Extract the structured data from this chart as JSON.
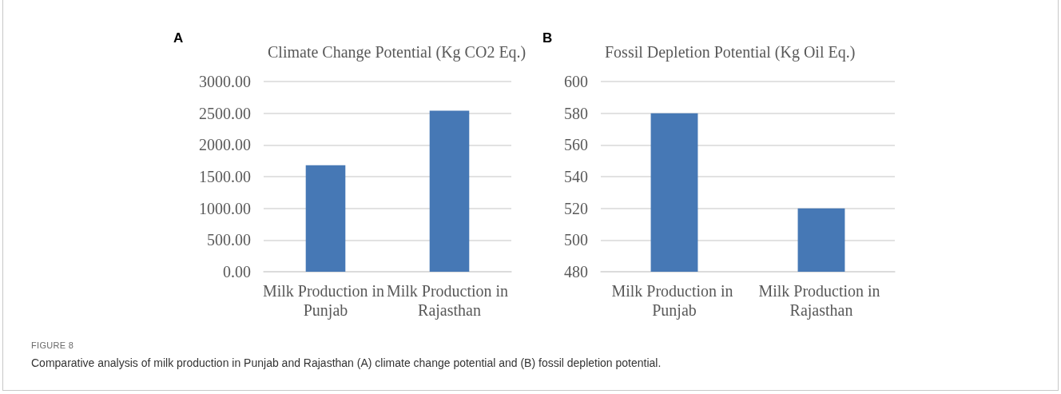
{
  "chart_data": [
    {
      "type": "bar",
      "title": "Climate Change Potential (Kg CO2 Eq.)",
      "categories": [
        "Milk Production in Punjab",
        "Milk Production in Rajasthan"
      ],
      "values": [
        1680,
        2540
      ],
      "color": "#4678b5",
      "ylim": [
        0,
        3000
      ],
      "yticks": [
        {
          "value": 0,
          "label": "0.00"
        },
        {
          "value": 500,
          "label": "500.00"
        },
        {
          "value": 1000,
          "label": "1000.00"
        },
        {
          "value": 1500,
          "label": "1500.00"
        },
        {
          "value": 2000,
          "label": "2000.00"
        },
        {
          "value": 2500,
          "label": "2500.00"
        },
        {
          "value": 3000,
          "label": "3000.00"
        }
      ],
      "grid": "y",
      "annotations": [
        "A"
      ]
    },
    {
      "type": "bar",
      "title": "Fossil Depletion Potential (Kg Oil Eq.)",
      "categories": [
        "Milk Production in Punjab",
        "Milk Production in Rajasthan"
      ],
      "values": [
        580,
        520
      ],
      "color": "#4678b5",
      "ylim": [
        480,
        600
      ],
      "yticks": [
        480,
        500,
        520,
        540,
        560,
        580,
        600
      ],
      "grid": "y",
      "annotations": [
        "B",
        "FIGURE 8",
        "Comparative analysis of milk production in Punjab and Rajasthan (A) climate change potential and (B) fossil depletion potential."
      ]
    }
  ]
}
